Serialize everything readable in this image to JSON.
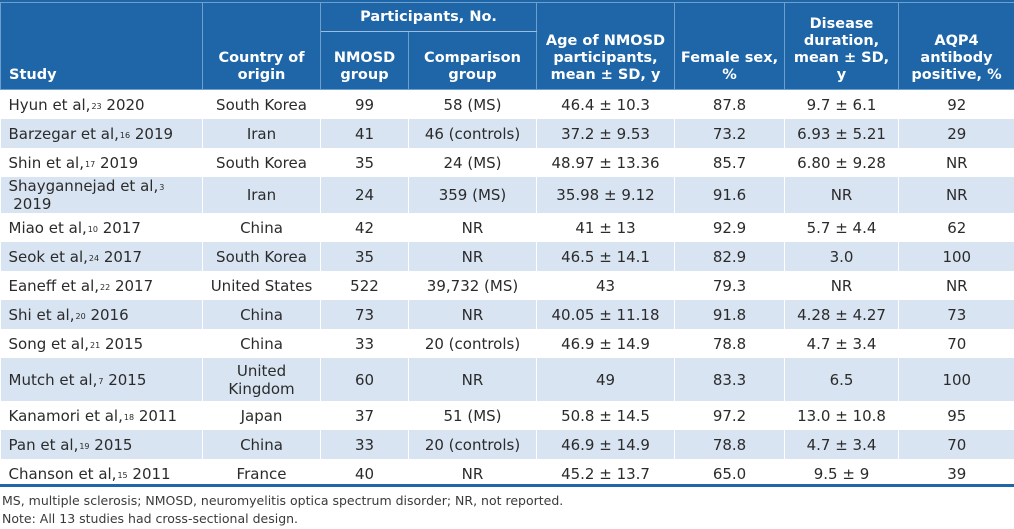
{
  "table": {
    "headers": {
      "study": "Study",
      "country": "Country of origin",
      "participants": "Participants, No.",
      "nmosd": "NMOSD group",
      "comparison": "Comparison group",
      "age": "Age of NMOSD participants, mean ± SD, y",
      "female": "Female sex, %",
      "duration": "Disease duration, mean ± SD, y",
      "aqp4": "AQP4 antibody positive, %"
    },
    "rows": [
      {
        "author": "Hyun et al,",
        "ref": "23",
        "year": " 2020",
        "country": "South Korea",
        "nmosd": "99",
        "comparison": "58 (MS)",
        "age": "46.4 ± 10.3",
        "female": "87.8",
        "duration": "9.7 ± 6.1",
        "aqp4": "92"
      },
      {
        "author": "Barzegar et al,",
        "ref": "16",
        "year": " 2019",
        "country": "Iran",
        "nmosd": "41",
        "comparison": "46 (controls)",
        "age": "37.2 ± 9.53",
        "female": "73.2",
        "duration": "6.93 ± 5.21",
        "aqp4": "29"
      },
      {
        "author": "Shin et al,",
        "ref": "17",
        "year": " 2019",
        "country": "South Korea",
        "nmosd": "35",
        "comparison": "24 (MS)",
        "age": "48.97 ± 13.36",
        "female": "85.7",
        "duration": "6.80 ± 9.28",
        "aqp4": "NR"
      },
      {
        "author": "Shaygannejad et al,",
        "ref": "3",
        "year": " 2019",
        "country": "Iran",
        "nmosd": "24",
        "comparison": "359 (MS)",
        "age": "35.98 ± 9.12",
        "female": "91.6",
        "duration": "NR",
        "aqp4": "NR"
      },
      {
        "author": "Miao et al,",
        "ref": "10",
        "year": " 2017",
        "country": "China",
        "nmosd": "42",
        "comparison": "NR",
        "age": "41 ± 13",
        "female": "92.9",
        "duration": "5.7 ± 4.4",
        "aqp4": "62"
      },
      {
        "author": "Seok et al,",
        "ref": "24",
        "year": " 2017",
        "country": "South Korea",
        "nmosd": "35",
        "comparison": "NR",
        "age": "46.5 ± 14.1",
        "female": "82.9",
        "duration": "3.0",
        "aqp4": "100"
      },
      {
        "author": "Eaneff et al,",
        "ref": "22",
        "year": " 2017",
        "country": "United States",
        "nmosd": "522",
        "comparison": "39,732 (MS)",
        "age": "43",
        "female": "79.3",
        "duration": "NR",
        "aqp4": "NR"
      },
      {
        "author": "Shi et al,",
        "ref": "20",
        "year": " 2016",
        "country": "China",
        "nmosd": "73",
        "comparison": "NR",
        "age": "40.05 ± 11.18",
        "female": "91.8",
        "duration": "4.28 ± 4.27",
        "aqp4": "73"
      },
      {
        "author": "Song et al,",
        "ref": "21",
        "year": " 2015",
        "country": "China",
        "nmosd": "33",
        "comparison": "20 (controls)",
        "age": "46.9 ± 14.9",
        "female": "78.8",
        "duration": "4.7 ± 3.4",
        "aqp4": "70"
      },
      {
        "author": "Mutch et al,",
        "ref": "7",
        "year": " 2015",
        "country": "United Kingdom",
        "nmosd": "60",
        "comparison": "NR",
        "age": "49",
        "female": "83.3",
        "duration": "6.5",
        "aqp4": "100"
      },
      {
        "author": "Kanamori et al,",
        "ref": "18",
        "year": " 2011",
        "country": "Japan",
        "nmosd": "37",
        "comparison": "51 (MS)",
        "age": "50.8 ± 14.5",
        "female": "97.2",
        "duration": "13.0 ± 10.8",
        "aqp4": "95"
      },
      {
        "author": "Pan et al,",
        "ref": "19",
        "year": " 2015",
        "country": "China",
        "nmosd": "33",
        "comparison": "20 (controls)",
        "age": "46.9 ± 14.9",
        "female": "78.8",
        "duration": "4.7 ± 3.4",
        "aqp4": "70"
      },
      {
        "author": "Chanson et al,",
        "ref": "15",
        "year": " 2011",
        "country": "France",
        "nmosd": "40",
        "comparison": "NR",
        "age": "45.2 ± 13.7",
        "female": "65.0",
        "duration": "9.5 ± 9",
        "aqp4": "39"
      }
    ]
  },
  "footnotes": {
    "abbreviations": "MS, multiple sclerosis; NMOSD, neuromyelitis optica spectrum disorder; NR, not reported.",
    "note": "Note: All 13 studies had cross-sectional design."
  },
  "colors": {
    "header_bg": "#1f66a8",
    "stripe": "#d8e4f2",
    "text": "#2b2b2b"
  }
}
